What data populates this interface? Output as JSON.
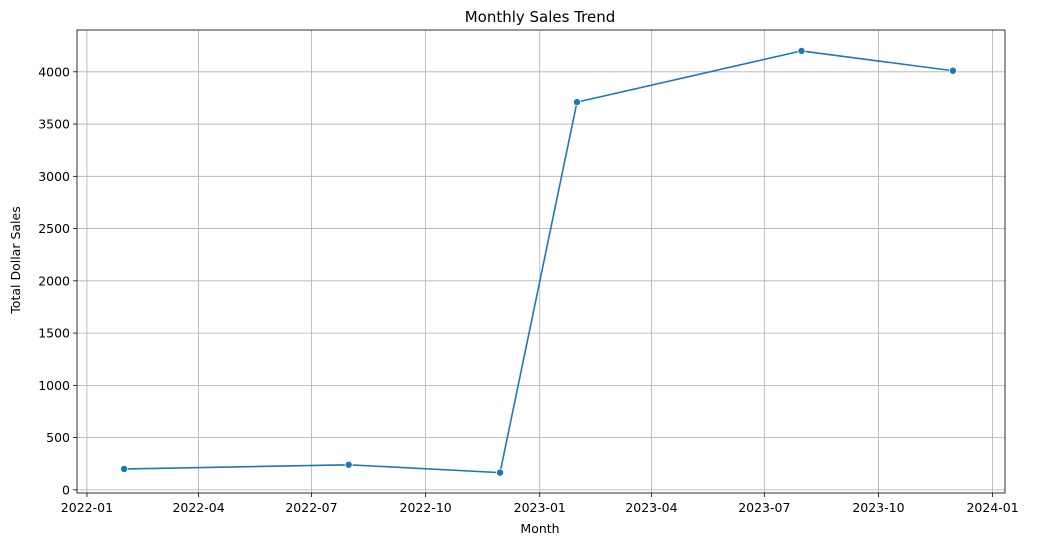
{
  "chart_data": {
    "type": "line",
    "title": "Monthly Sales Trend",
    "xlabel": "Month",
    "ylabel": "Total Dollar Sales",
    "x_type": "date",
    "xlim": [
      "2021-12-24",
      "2024-01-11"
    ],
    "ylim": [
      -30,
      4400
    ],
    "grid": true,
    "x_ticks": [
      "2022-01",
      "2022-04",
      "2022-07",
      "2022-10",
      "2023-01",
      "2023-04",
      "2023-07",
      "2023-10",
      "2024-01"
    ],
    "y_ticks": [
      0,
      500,
      1000,
      1500,
      2000,
      2500,
      3000,
      3500,
      4000
    ],
    "series": [
      {
        "x": [
          "2022-01-31",
          "2022-07-31",
          "2022-11-30",
          "2023-01-31",
          "2023-07-31",
          "2023-11-30"
        ],
        "values": [
          200,
          240,
          165,
          3710,
          4200,
          4010
        ],
        "color": "#1f77b4",
        "marker": "circle"
      }
    ]
  }
}
